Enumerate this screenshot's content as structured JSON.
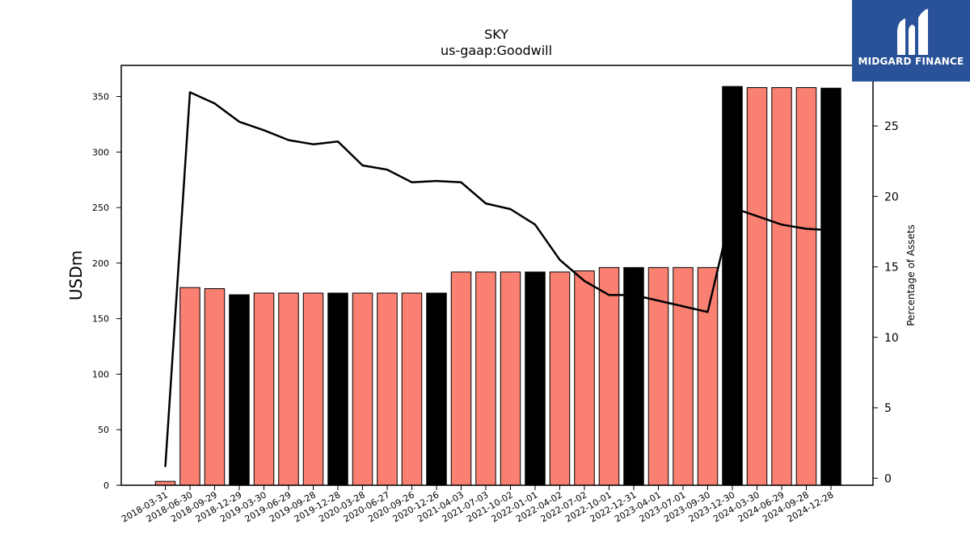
{
  "brand": {
    "name": "MIDGARD FINANCE",
    "color": "#2a5298"
  },
  "colors": {
    "bar_primary": "#fa8072",
    "bar_highlight": "#000000",
    "line": "#000000"
  },
  "chart_data": {
    "type": "bar",
    "title": "SKY",
    "subtitle": "us-gaap:Goodwill",
    "ylabel": "USDm",
    "y2label": "Percentage of Assets",
    "ylim": [
      0,
      378
    ],
    "y2lim": [
      -0.5,
      29.3
    ],
    "yticks": [
      0,
      50,
      100,
      150,
      200,
      250,
      300,
      350
    ],
    "y2ticks": [
      0,
      5,
      10,
      15,
      20,
      25
    ],
    "categories": [
      "2018-03-31",
      "2018-06-30",
      "2018-09-29",
      "2018-12-29",
      "2019-03-30",
      "2019-06-29",
      "2019-09-28",
      "2019-12-28",
      "2020-03-28",
      "2020-06-27",
      "2020-09-26",
      "2020-12-26",
      "2021-04-03",
      "2021-07-03",
      "2021-10-02",
      "2022-01-01",
      "2022-04-02",
      "2022-07-02",
      "2022-10-01",
      "2022-12-31",
      "2023-04-01",
      "2023-07-01",
      "2023-09-30",
      "2023-12-30",
      "2024-03-30",
      "2024-06-29",
      "2024-09-28",
      "2024-12-28"
    ],
    "series": [
      {
        "kind": "bar",
        "values": [
          3.5,
          178,
          177,
          171.5,
          173,
          173,
          173,
          173,
          173,
          173,
          173,
          173,
          192,
          192,
          192,
          192,
          192,
          193,
          196,
          196,
          196,
          196,
          196,
          359,
          358,
          358,
          358,
          357.5
        ]
      },
      {
        "kind": "line",
        "axis": "right",
        "values": [
          0.8,
          27.4,
          26.6,
          25.3,
          24.7,
          24.0,
          23.7,
          23.9,
          22.2,
          21.9,
          21.0,
          21.1,
          21.0,
          19.5,
          19.1,
          18.0,
          15.5,
          14.0,
          13.0,
          13.0,
          12.6,
          12.2,
          11.8,
          19.2,
          18.6,
          18.0,
          17.7,
          17.6
        ]
      }
    ],
    "highlight_categories": [
      "2018-12-29",
      "2019-12-28",
      "2020-12-26",
      "2022-01-01",
      "2022-12-31",
      "2023-12-30",
      "2024-12-28"
    ],
    "grid": false,
    "legend": "none"
  }
}
